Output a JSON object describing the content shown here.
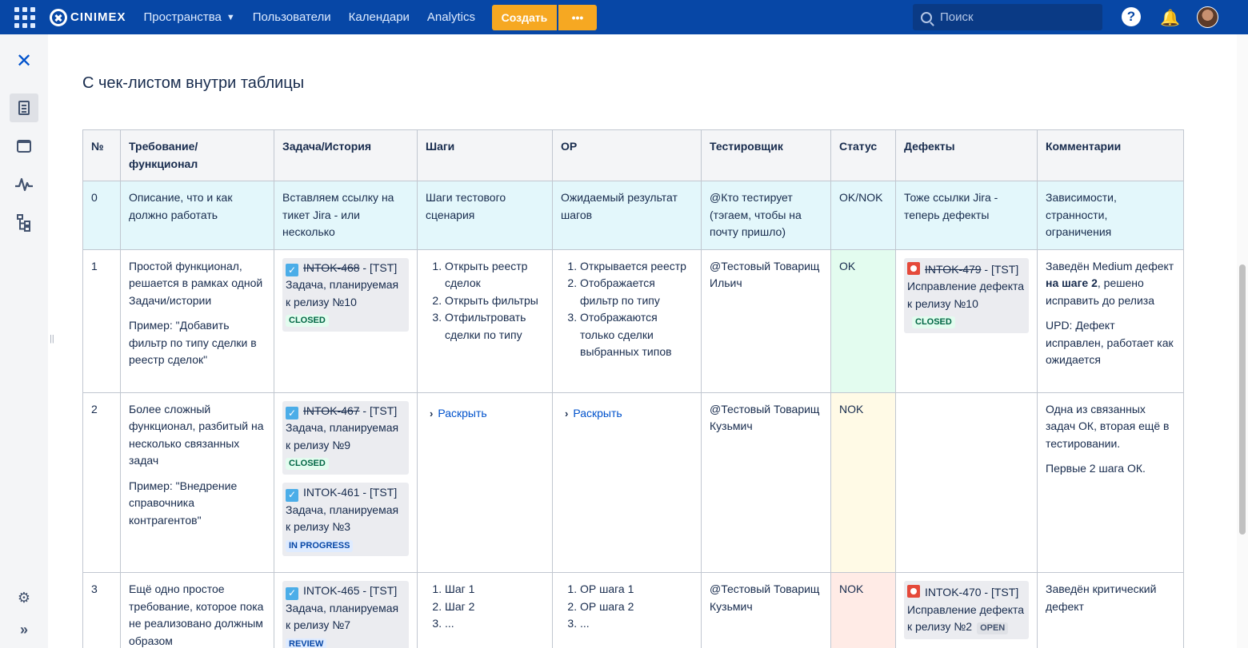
{
  "topbar": {
    "logo": "CINIMEX",
    "nav": [
      "Пространства",
      "Пользователи",
      "Календари",
      "Analytics"
    ],
    "create_label": "Создать",
    "more_label": "•••",
    "search_placeholder": "Поиск",
    "help_label": "?"
  },
  "page": {
    "title": "С чек-листом внутри таблицы"
  },
  "table": {
    "headers": [
      "№",
      "Требование/ функционал",
      "Задача/История",
      "Шаги",
      "ОР",
      "Тестировщик",
      "Статус",
      "Дефекты",
      "Комментарии"
    ],
    "row0": {
      "n": "0",
      "req": "Описание, что и как должно работать",
      "task": "Вставляем ссылку на тикет Jira - или несколько",
      "steps": "Шаги тестового сценария",
      "er": "Ожидаемый результат шагов",
      "tester": "@Кто тестирует (тэгаем, чтобы на почту пришло)",
      "status": "OK/NOK",
      "defects": "Тоже ссылки Jira - теперь дефекты",
      "comments": "Зависимости, странности, ограничения"
    },
    "row1": {
      "n": "1",
      "req1": "Простой функционал, решается в рамках одной Задачи/истории",
      "req2": "Пример: \"Добавить фильтр по типу сделки в реестр сделок\"",
      "task_key": "INTOK-468",
      "task_rest": " - [TST] Задача, планируемая к релизу №10",
      "task_status": "CLOSED",
      "steps": [
        "Открыть реестр сделок",
        "Открыть фильтры",
        "Отфильтровать сделки по типу"
      ],
      "er": [
        "Открывается реестр",
        "Отображается фильтр по типу",
        "Отображаются только сделки выбранных типов"
      ],
      "tester": "@Тестовый Товарищ Ильич",
      "status": "OK",
      "defect_key": "INTOK-479",
      "defect_rest": " - [TST] Исправление дефекта к релизу №10",
      "defect_status": "CLOSED",
      "comment1_a": "Заведён Medium дефект ",
      "comment1_b": "на шаге 2",
      "comment1_c": ", решено исправить до релиза",
      "comment2": "UPD: Дефект исправлен, работает как ожидается"
    },
    "row2": {
      "n": "2",
      "req1": "Более сложный функционал, разбитый на несколько связанных задач",
      "req2": "Пример: \"Внедрение справочника контрагентов\"",
      "task1_key": "INTOK-467",
      "task1_rest": " - [TST] Задача, планируемая к релизу №9",
      "task1_status": "CLOSED",
      "task2_key": "INTOK-461",
      "task2_rest": " - [TST] Задача, планируемая к релизу №3",
      "task2_status": "IN PROGRESS",
      "steps_expand": "Раскрыть",
      "er_expand": "Раскрыть",
      "tester": "@Тестовый Товарищ Кузьмич",
      "status": "NOK",
      "comment1": "Одна из связанных задач ОК, вторая ещё в тестировании.",
      "comment2": "Первые 2 шага ОК."
    },
    "row3": {
      "n": "3",
      "req": "Ещё одно простое требование, которое пока не реализовано должным образом",
      "task_key": "INTOK-465",
      "task_rest": " - [TST] Задача, планируемая к релизу №7",
      "task_status": "REVIEW",
      "steps": [
        "Шаг 1",
        "Шаг 2",
        "..."
      ],
      "er": [
        "ОР шага 1",
        "ОР шага 2",
        "..."
      ],
      "tester": "@Тестовый Товарищ Кузьмич",
      "status": "NOK",
      "defect_key": "INTOK-470",
      "defect_rest": " - [TST] Исправление дефекта к релизу №2",
      "defect_status": "OPEN",
      "comment": "Заведён критический дефект"
    }
  },
  "colors": {
    "topbar": "#0747a6",
    "create": "#f6a822",
    "row0_bg": "#e3f7fb",
    "ok_bg": "#e3fcef",
    "nok_yellow_bg": "#fffae6",
    "nok_red_bg": "#ffebe6"
  },
  "icons": [
    "app-switcher-icon",
    "cinimex-logo",
    "search-icon",
    "help-icon",
    "notification-icon",
    "avatar",
    "confluence-icon",
    "pages-icon",
    "calendar-icon",
    "pulse-icon",
    "tree-icon",
    "settings-icon",
    "expand-sidebar-icon",
    "task-checkbox-icon",
    "bug-icon"
  ]
}
